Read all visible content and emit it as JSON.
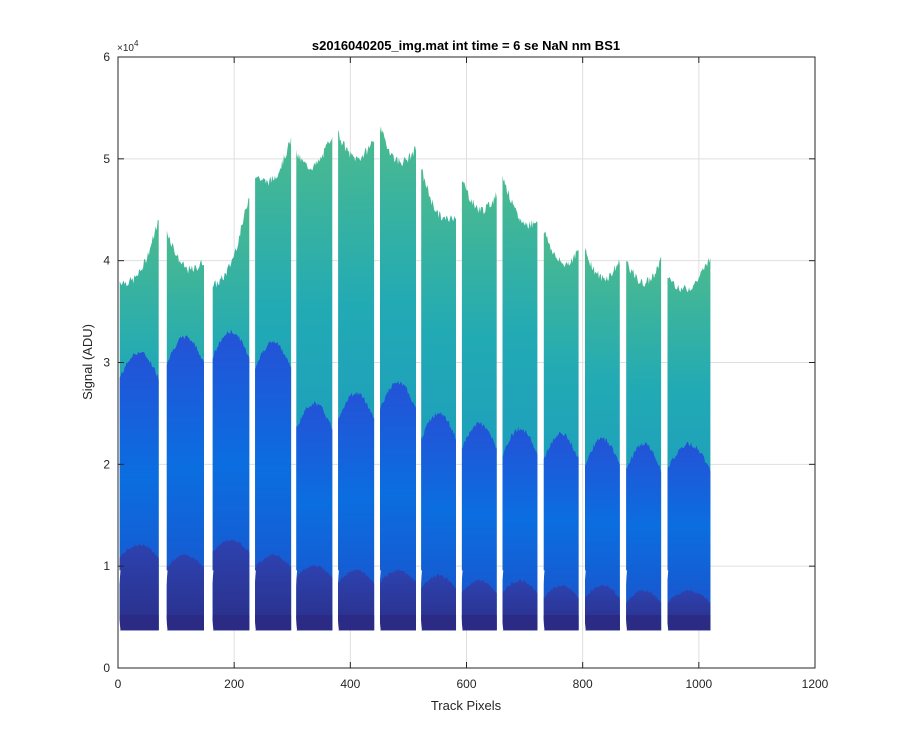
{
  "chart_data": {
    "type": "area",
    "title": "s2016040205_img.mat int time = 6 se  NaN nm BS1",
    "xlabel": "Track Pixels",
    "ylabel": "Signal (ADU)",
    "y_exponent_base": "×10",
    "y_exponent_power": "4",
    "xlim": [
      0,
      1200
    ],
    "ylim": [
      0,
      60000
    ],
    "x_ticks": [
      0,
      200,
      400,
      600,
      800,
      1000,
      1200
    ],
    "x_tick_labels": [
      "0",
      "200",
      "400",
      "600",
      "800",
      "1000",
      "1200"
    ],
    "y_ticks": [
      0,
      10000,
      20000,
      30000,
      40000,
      50000,
      60000
    ],
    "y_tick_labels": [
      "0",
      "1",
      "2",
      "3",
      "4",
      "5",
      "6"
    ],
    "grid": true,
    "baseline": 3700,
    "tracks": [
      {
        "x0": 3,
        "x1": 70,
        "top_start": 38000,
        "top_end": 44000,
        "mid": 30000,
        "low": 11500
      },
      {
        "x0": 84,
        "x1": 148,
        "top_start": 43000,
        "top_end": 40000,
        "mid": 31500,
        "low": 10500
      },
      {
        "x0": 163,
        "x1": 226,
        "top_start": 37500,
        "top_end": 46500,
        "mid": 32000,
        "low": 12000
      },
      {
        "x0": 236,
        "x1": 298,
        "top_start": 48500,
        "top_end": 52000,
        "mid": 31000,
        "low": 10500
      },
      {
        "x0": 307,
        "x1": 369,
        "top_start": 50500,
        "top_end": 52500,
        "mid": 25000,
        "low": 9500
      },
      {
        "x0": 379,
        "x1": 441,
        "top_start": 52500,
        "top_end": 52000,
        "mid": 26000,
        "low": 9000
      },
      {
        "x0": 451,
        "x1": 513,
        "top_start": 53000,
        "top_end": 51000,
        "mid": 27000,
        "low": 9000
      },
      {
        "x0": 522,
        "x1": 582,
        "top_start": 49000,
        "top_end": 44500,
        "mid": 24000,
        "low": 8500
      },
      {
        "x0": 592,
        "x1": 652,
        "top_start": 48000,
        "top_end": 46500,
        "mid": 23000,
        "low": 8000
      },
      {
        "x0": 662,
        "x1": 722,
        "top_start": 48500,
        "top_end": 44000,
        "mid": 22500,
        "low": 8000
      },
      {
        "x0": 733,
        "x1": 793,
        "top_start": 43000,
        "top_end": 41000,
        "mid": 22000,
        "low": 7500
      },
      {
        "x0": 804,
        "x1": 864,
        "top_start": 41000,
        "top_end": 40000,
        "mid": 21500,
        "low": 7500
      },
      {
        "x0": 875,
        "x1": 935,
        "top_start": 40000,
        "top_end": 40000,
        "mid": 21000,
        "low": 7000
      },
      {
        "x0": 946,
        "x1": 1020,
        "top_start": 38500,
        "top_end": 40500,
        "mid": 21000,
        "low": 7000
      }
    ],
    "colors": {
      "top": "#1aa3b8",
      "top_highlight": "#47b89a",
      "mid": "#1c5fd8",
      "low": "#283a9c",
      "base": "#2b2b85"
    }
  }
}
